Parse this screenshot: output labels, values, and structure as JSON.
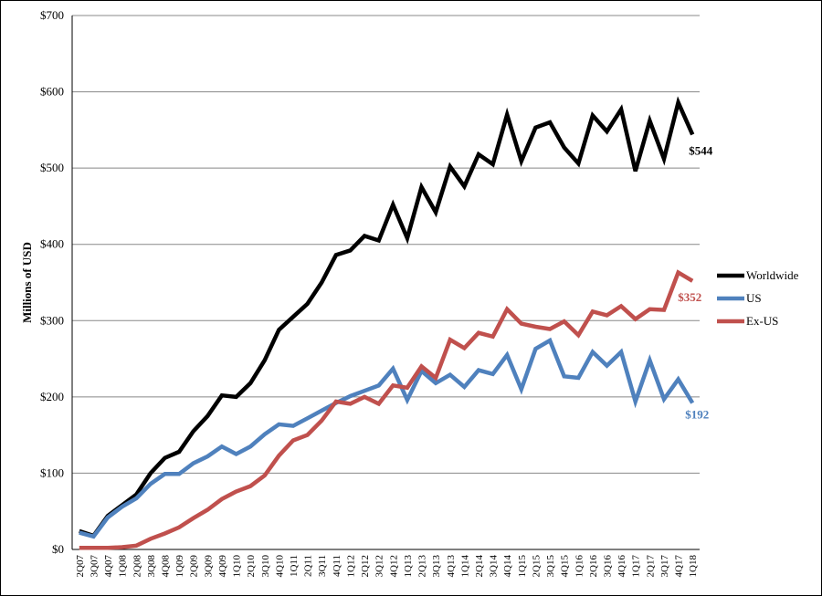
{
  "chart_data": {
    "type": "line",
    "title": "",
    "xlabel": "",
    "ylabel": "Millions of USD",
    "ylim": [
      0,
      700
    ],
    "y_ticks": [
      "$0",
      "$100",
      "$200",
      "$300",
      "$400",
      "$500",
      "$600",
      "$700"
    ],
    "y_tick_values": [
      0,
      100,
      200,
      300,
      400,
      500,
      600,
      700
    ],
    "grid": "horizontal",
    "legend_position": "right",
    "categories": [
      "2Q07",
      "3Q07",
      "4Q07",
      "1Q08",
      "2Q08",
      "3Q08",
      "4Q08",
      "1Q09",
      "2Q09",
      "3Q09",
      "4Q09",
      "1Q10",
      "2Q10",
      "3Q10",
      "4Q10",
      "1Q11",
      "2Q11",
      "3Q11",
      "4Q11",
      "1Q12",
      "2Q12",
      "3Q12",
      "4Q12",
      "1Q13",
      "2Q13",
      "3Q13",
      "4Q13",
      "1Q14",
      "2Q14",
      "3Q14",
      "4Q14",
      "1Q15",
      "2Q15",
      "3Q15",
      "4Q15",
      "1Q16",
      "2Q16",
      "3Q16",
      "4Q16",
      "1Q17",
      "2Q17",
      "3Q17",
      "4Q17",
      "1Q18"
    ],
    "series": [
      {
        "name": "Worldwide",
        "color": "#000000",
        "end_label": "$544",
        "values": [
          24,
          18,
          44,
          58,
          72,
          100,
          120,
          128,
          155,
          175,
          202,
          200,
          218,
          248,
          288,
          305,
          322,
          350,
          386,
          392,
          411,
          405,
          452,
          408,
          475,
          442,
          502,
          476,
          518,
          505,
          570,
          509,
          553,
          560,
          527,
          506,
          569,
          548,
          577,
          496,
          562,
          512,
          586,
          544
        ]
      },
      {
        "name": "US",
        "color": "#4f81bd",
        "end_label": "$192",
        "values": [
          22,
          17,
          42,
          56,
          67,
          86,
          99,
          99,
          113,
          122,
          135,
          125,
          135,
          151,
          164,
          162,
          172,
          182,
          192,
          201,
          208,
          215,
          237,
          196,
          234,
          218,
          229,
          213,
          235,
          230,
          255,
          210,
          263,
          274,
          227,
          225,
          259,
          241,
          259,
          194,
          248,
          197,
          223,
          192
        ]
      },
      {
        "name": "Ex-US",
        "color": "#c0504d",
        "end_label": "$352",
        "values": [
          2,
          2,
          2,
          3,
          5,
          14,
          21,
          29,
          41,
          52,
          66,
          76,
          83,
          97,
          123,
          143,
          150,
          169,
          194,
          191,
          200,
          191,
          215,
          212,
          240,
          225,
          275,
          264,
          284,
          279,
          315,
          296,
          292,
          289,
          299,
          281,
          312,
          307,
          319,
          302,
          315,
          314,
          363,
          352
        ]
      }
    ]
  }
}
